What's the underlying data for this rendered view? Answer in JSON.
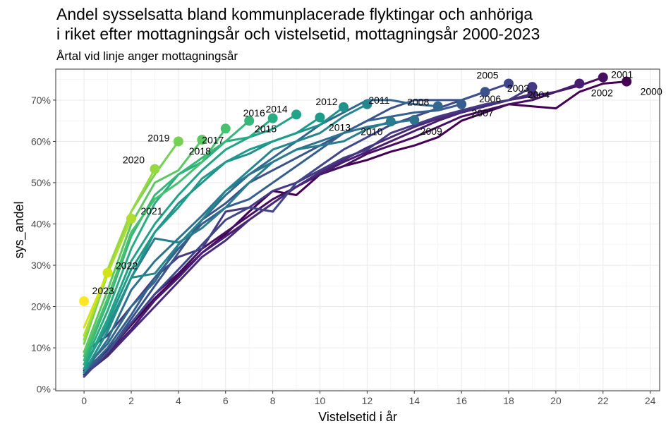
{
  "chart_data": {
    "type": "line",
    "title_lines": [
      "Andel sysselsatta bland kommunplacerade flyktingar och anhöriga",
      "i riket efter mottagningsår och vistelsetid, mottagningsår 2000-2023"
    ],
    "subtitle": "Årtal vid linje anger mottagningsår",
    "xlabel": "Vistelsetid i år",
    "ylabel": "sys_andel",
    "xlim": [
      -1.2,
      24.4
    ],
    "ylim": [
      -0.004,
      0.775
    ],
    "x_ticks": [
      0,
      2,
      4,
      6,
      8,
      10,
      12,
      14,
      16,
      18,
      20,
      22,
      24
    ],
    "x_tick_labels": [
      "0",
      "2",
      "4",
      "6",
      "8",
      "10",
      "12",
      "14",
      "16",
      "18",
      "20",
      "22",
      "24"
    ],
    "y_ticks": [
      0,
      0.1,
      0.2,
      0.3,
      0.4,
      0.5,
      0.6,
      0.7
    ],
    "y_tick_labels": [
      "0%",
      "10%",
      "20%",
      "30%",
      "40%",
      "50%",
      "60%",
      "70%"
    ],
    "colormap": "viridis",
    "colors": {
      "2000": "#440154",
      "2001": "#470f62",
      "2002": "#481d6f",
      "2003": "#472a7a",
      "2004": "#443983",
      "2005": "#40468a",
      "2006": "#3b528b",
      "2007": "#365f8d",
      "2008": "#31688e",
      "2009": "#2d738e",
      "2010": "#297d8e",
      "2011": "#25868e",
      "2012": "#21918c",
      "2013": "#1f9b8a",
      "2014": "#20a386",
      "2015": "#27ad81",
      "2016": "#35b779",
      "2017": "#47c16e",
      "2018": "#5dc863",
      "2019": "#76d054",
      "2020": "#95d840",
      "2021": "#b0dd2f",
      "2022": "#d4e21a",
      "2023": "#fde725"
    },
    "series": [
      {
        "name": "2000",
        "values": [
          0.035,
          0.09,
          0.155,
          0.22,
          0.275,
          0.33,
          0.375,
          0.43,
          0.48,
          0.47,
          0.52,
          0.54,
          0.555,
          0.575,
          0.59,
          0.61,
          0.65,
          0.67,
          0.69,
          0.685,
          0.68,
          0.72,
          0.74,
          0.745
        ],
        "label": "2000"
      },
      {
        "name": "2001",
        "values": [
          0.045,
          0.095,
          0.16,
          0.23,
          0.28,
          0.34,
          0.38,
          0.42,
          0.46,
          0.49,
          0.52,
          0.54,
          0.57,
          0.59,
          0.61,
          0.635,
          0.66,
          0.675,
          0.69,
          0.7,
          0.72,
          0.735,
          0.755
        ],
        "label": "2001"
      },
      {
        "name": "2002",
        "values": [
          0.04,
          0.085,
          0.145,
          0.215,
          0.27,
          0.33,
          0.37,
          0.41,
          0.45,
          0.49,
          0.52,
          0.55,
          0.575,
          0.6,
          0.625,
          0.65,
          0.67,
          0.685,
          0.7,
          0.71,
          0.72,
          0.74
        ],
        "label": "2002"
      },
      {
        "name": "2003",
        "values": [
          0.035,
          0.08,
          0.14,
          0.2,
          0.26,
          0.32,
          0.36,
          0.41,
          0.45,
          0.49,
          0.525,
          0.555,
          0.585,
          0.61,
          0.635,
          0.655,
          0.67,
          0.685,
          0.7,
          0.715
        ],
        "label": "2003"
      },
      {
        "name": "2004",
        "values": [
          0.09,
          0.13,
          0.2,
          0.27,
          0.32,
          0.34,
          0.43,
          0.44,
          0.48,
          0.5,
          0.53,
          0.56,
          0.58,
          0.62,
          0.64,
          0.66,
          0.675,
          0.69,
          0.7,
          0.732
        ],
        "label": "2004"
      },
      {
        "name": "2005",
        "values": [
          0.03,
          0.09,
          0.16,
          0.23,
          0.29,
          0.35,
          0.41,
          0.44,
          0.43,
          0.5,
          0.54,
          0.58,
          0.61,
          0.64,
          0.66,
          0.68,
          0.7,
          0.72,
          0.74
        ],
        "label": "2005"
      },
      {
        "name": "2006",
        "values": [
          0.04,
          0.09,
          0.17,
          0.25,
          0.33,
          0.41,
          0.45,
          0.5,
          0.53,
          0.56,
          0.59,
          0.62,
          0.65,
          0.68,
          0.7,
          0.7,
          0.7,
          0.72
        ],
        "label": "2006"
      },
      {
        "name": "2007",
        "values": [
          0.04,
          0.1,
          0.18,
          0.27,
          0.34,
          0.4,
          0.44,
          0.46,
          0.5,
          0.54,
          0.58,
          0.62,
          0.65,
          0.66,
          0.67,
          0.675,
          0.69
        ],
        "label": "2007"
      },
      {
        "name": "2008",
        "values": [
          0.05,
          0.11,
          0.2,
          0.26,
          0.35,
          0.41,
          0.47,
          0.52,
          0.56,
          0.6,
          0.64,
          0.67,
          0.7,
          0.7,
          0.69,
          0.685
        ],
        "label": "2008"
      },
      {
        "name": "2009",
        "values": [
          0.04,
          0.12,
          0.24,
          0.31,
          0.365,
          0.42,
          0.48,
          0.52,
          0.55,
          0.58,
          0.6,
          0.62,
          0.635,
          0.645,
          0.652
        ],
        "label": "2009"
      },
      {
        "name": "2010",
        "values": [
          0.04,
          0.14,
          0.27,
          0.365,
          0.355,
          0.39,
          0.44,
          0.5,
          0.55,
          0.58,
          0.59,
          0.6,
          0.63,
          0.648
        ],
        "label": "2010"
      },
      {
        "name": "2011",
        "values": [
          0.06,
          0.15,
          0.27,
          0.28,
          0.35,
          0.41,
          0.48,
          0.53,
          0.58,
          0.6,
          0.62,
          0.66,
          0.69
        ],
        "label": "2011"
      },
      {
        "name": "2012",
        "values": [
          0.04,
          0.14,
          0.27,
          0.38,
          0.45,
          0.5,
          0.55,
          0.57,
          0.6,
          0.62,
          0.64,
          0.683
        ],
        "label": "2012"
      },
      {
        "name": "2013",
        "values": [
          0.05,
          0.16,
          0.29,
          0.38,
          0.44,
          0.51,
          0.55,
          0.58,
          0.6,
          0.62,
          0.658
        ],
        "label": "2013"
      },
      {
        "name": "2014",
        "values": [
          0.05,
          0.17,
          0.31,
          0.4,
          0.47,
          0.53,
          0.58,
          0.61,
          0.63,
          0.665
        ],
        "label": "2014"
      },
      {
        "name": "2015",
        "values": [
          0.06,
          0.19,
          0.34,
          0.45,
          0.52,
          0.55,
          0.6,
          0.61,
          0.656
        ],
        "label": "2015"
      },
      {
        "name": "2016",
        "values": [
          0.07,
          0.21,
          0.37,
          0.47,
          0.52,
          0.56,
          0.6,
          0.65
        ],
        "label": "2016"
      },
      {
        "name": "2017",
        "values": [
          0.08,
          0.22,
          0.38,
          0.46,
          0.5,
          0.55,
          0.631
        ],
        "label": "2017"
      },
      {
        "name": "2018",
        "values": [
          0.09,
          0.24,
          0.4,
          0.5,
          0.53,
          0.604
        ],
        "label": "2018"
      },
      {
        "name": "2019",
        "values": [
          0.11,
          0.28,
          0.43,
          0.52,
          0.6
        ],
        "label": "2019"
      },
      {
        "name": "2020",
        "values": [
          0.12,
          0.29,
          0.43,
          0.533
        ],
        "label": "2020"
      },
      {
        "name": "2021",
        "values": [
          0.13,
          0.28,
          0.413
        ],
        "label": "2021"
      },
      {
        "name": "2022",
        "values": [
          0.15,
          0.282
        ],
        "label": "2022"
      },
      {
        "name": "2023",
        "values": [
          0.213
        ],
        "label": "2023"
      }
    ]
  }
}
